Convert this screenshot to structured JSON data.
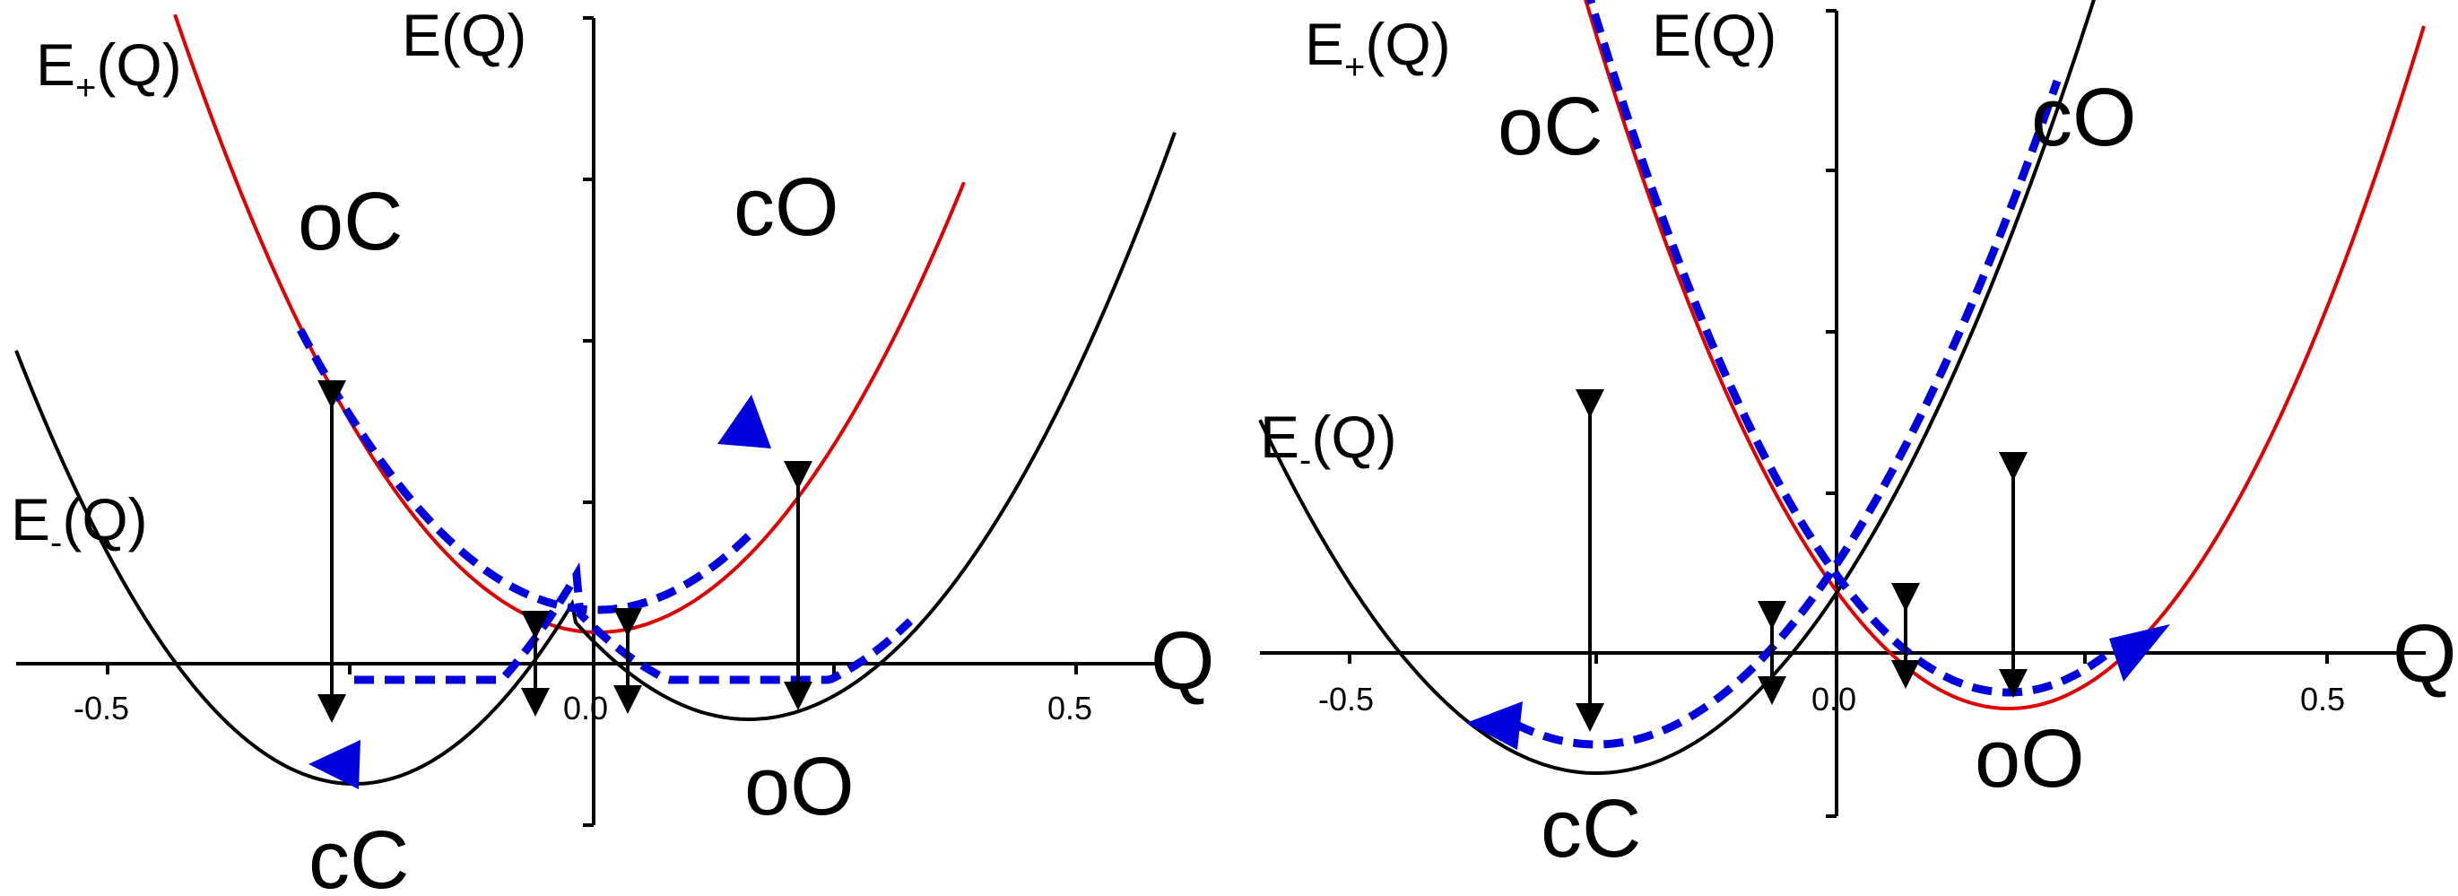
{
  "colors": {
    "upper_curve": "#e00000",
    "lower_curve": "#000000",
    "trajectory": "#0000dd",
    "axis": "#000000"
  },
  "panels": [
    {
      "id": "left",
      "axis_label_x": "Q",
      "axis_label_y": "E(Q)",
      "label_upper_main": "E",
      "label_upper_sub": "+",
      "label_upper_tail": "(Q)",
      "label_lower_main": "E",
      "label_lower_sub": "-",
      "label_lower_tail": "(Q)",
      "ticks": [
        "-0.5",
        "0.0",
        "0.5"
      ],
      "states": [
        "oC",
        "cO",
        "cC",
        "oO"
      ]
    },
    {
      "id": "right",
      "axis_label_x": "Q",
      "axis_label_y": "E(Q)",
      "label_upper_main": "E",
      "label_upper_sub": "+",
      "label_upper_tail": "(Q)",
      "label_lower_main": "E",
      "label_lower_sub": "-",
      "label_lower_tail": "(Q)",
      "ticks": [
        "-0.5",
        "0.0",
        "0.5"
      ],
      "states": [
        "oC",
        "cO",
        "cC",
        "oO"
      ]
    }
  ]
}
